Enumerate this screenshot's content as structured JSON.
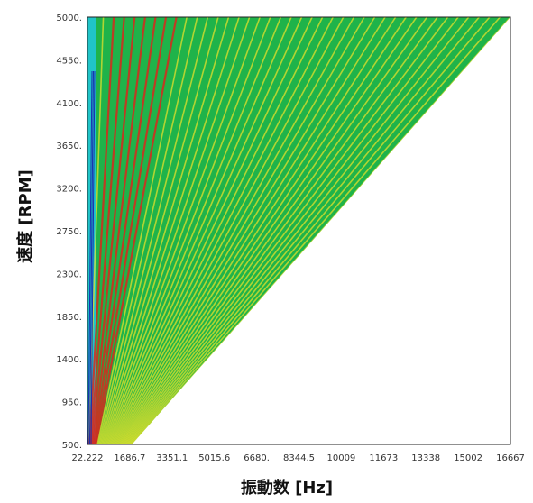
{
  "chart_data": {
    "type": "heatmap",
    "title": "",
    "xlabel": "振動数 [Hz]",
    "ylabel": "速度 [RPM]",
    "x_tick_labels": [
      "22.222",
      "1686.7",
      "3351.1",
      "5015.6",
      "6680.",
      "8344.5",
      "10009",
      "11673",
      "13338",
      "15002",
      "16667"
    ],
    "y_tick_labels": [
      "5000.",
      "4550.",
      "4100.",
      "3650.",
      "3200.",
      "2750.",
      "2300.",
      "1850.",
      "1400.",
      "950.",
      "500."
    ],
    "xlim": [
      22.222,
      16667
    ],
    "ylim": [
      500,
      5000
    ],
    "orders": 40,
    "order_band_at_max_rpm": [
      2,
      8
    ],
    "colors": {
      "background": "#1fb34a",
      "order_line": "#e3e02b",
      "peak_line": "#d8281c",
      "low_frequency": "#20c4c8",
      "low_order_dark": "#1a2fb0",
      "plot_border": "#222222"
    }
  }
}
